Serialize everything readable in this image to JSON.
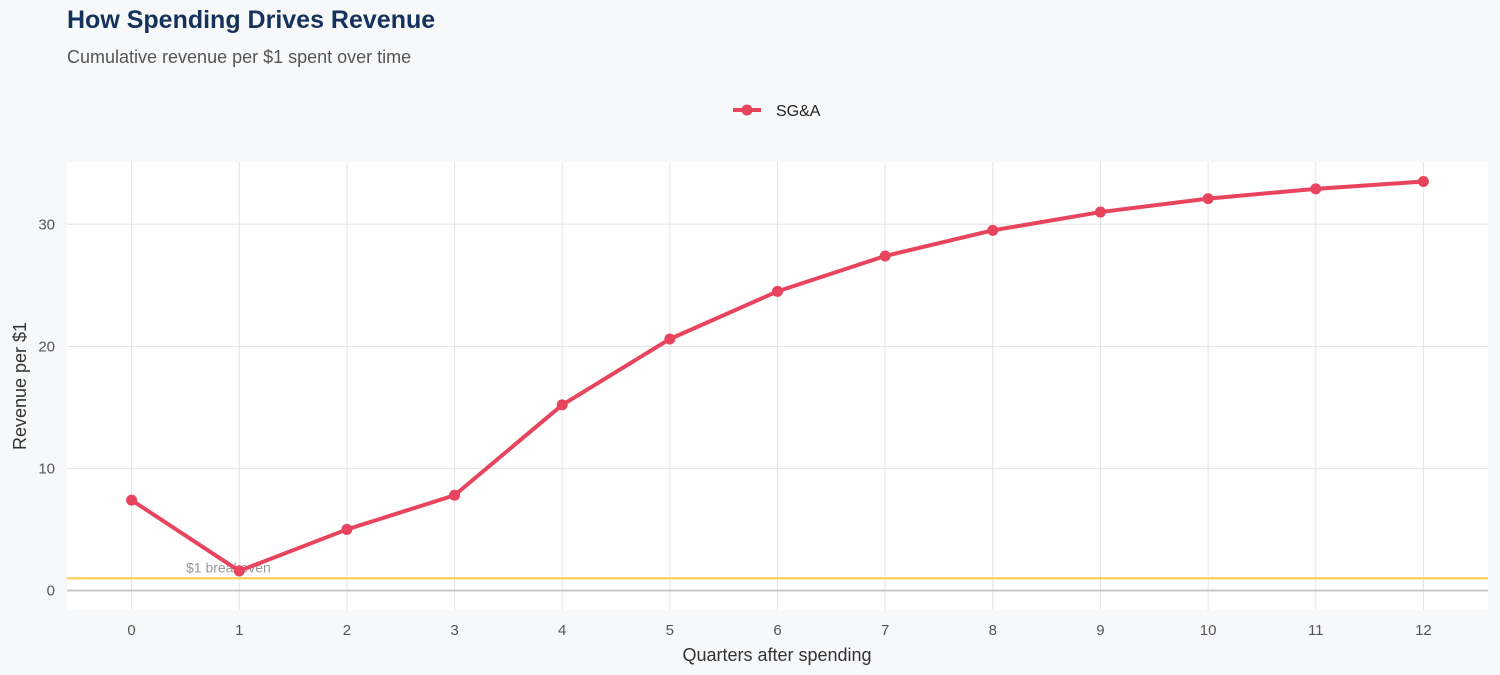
{
  "chart_data": {
    "type": "line",
    "title": "How Spending Drives Revenue",
    "subtitle": "Cumulative revenue per $1 spent over time",
    "xlabel": "Quarters after spending",
    "ylabel": "Revenue per $1",
    "x": [
      0,
      1,
      2,
      3,
      4,
      5,
      6,
      7,
      8,
      9,
      10,
      11,
      12
    ],
    "series": [
      {
        "name": "SG&A",
        "color": "#e8445e",
        "values": [
          7.4,
          1.6,
          5.0,
          7.8,
          15.2,
          20.6,
          24.5,
          27.4,
          29.5,
          31.0,
          32.1,
          32.9,
          33.5
        ]
      }
    ],
    "xticks": [
      "0",
      "1",
      "2",
      "3",
      "4",
      "5",
      "6",
      "7",
      "8",
      "9",
      "10",
      "11",
      "12"
    ],
    "yticks": [
      "0",
      "10",
      "20",
      "30"
    ],
    "xlim": [
      -0.6,
      12.6
    ],
    "ylim": [
      -1.6,
      35.1
    ],
    "grid": true,
    "legend_position": "top",
    "reference_line": {
      "value": 1,
      "label": "$1 breakeven",
      "color": "#ffd166"
    }
  }
}
